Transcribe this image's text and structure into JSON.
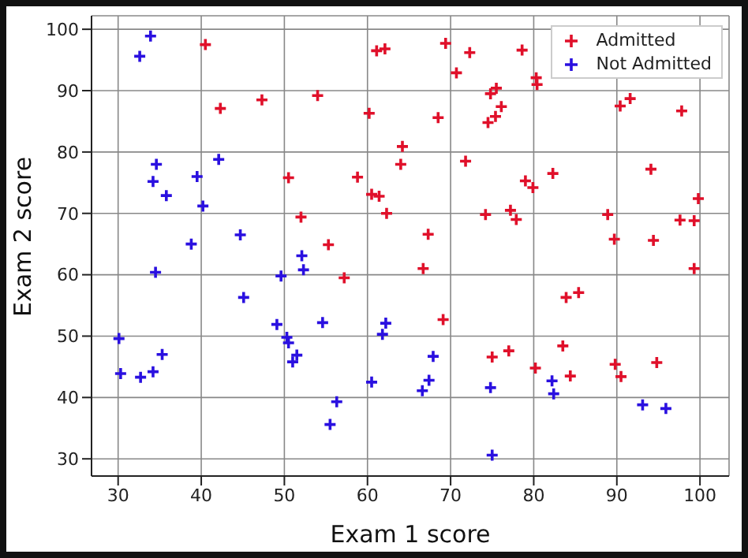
{
  "chart_data": {
    "type": "scatter",
    "xlabel": "Exam 1 score",
    "ylabel": "Exam 2 score",
    "xlim": [
      26.8,
      103.5
    ],
    "ylim": [
      27.2,
      102.2
    ],
    "xticks": [
      30,
      40,
      50,
      60,
      70,
      80,
      90,
      100
    ],
    "yticks": [
      30,
      40,
      50,
      60,
      70,
      80,
      90,
      100
    ],
    "grid": true,
    "legend": "top right",
    "marker": "cross",
    "series": [
      {
        "name": "Admitted",
        "color": "#e0102a",
        "x": [
          60.2,
          79.0,
          61.1,
          75.0,
          76.1,
          84.4,
          82.3,
          69.4,
          54.0,
          69.1,
          70.7,
          77.0,
          89.7,
          77.9,
          62.3,
          80.2,
          61.4,
          85.4,
          52.0,
          64.2,
          83.9,
          94.4,
          77.2,
          97.8,
          62.1,
          91.6,
          79.9,
          99.3,
          90.5,
          97.6,
          74.2,
          71.8,
          75.4,
          40.5,
          80.3,
          66.7,
          64.0,
          72.3,
          60.5,
          58.8,
          99.8,
          47.3,
          50.5,
          88.9,
          94.8,
          67.3,
          57.2,
          80.4,
          68.5,
          75.5,
          78.6,
          94.1,
          90.4,
          74.5,
          89.8,
          83.5,
          42.3,
          99.3,
          55.3,
          74.8
        ],
        "values": [
          86.3,
          75.3,
          96.5,
          46.6,
          87.4,
          43.5,
          76.5,
          97.7,
          89.2,
          52.7,
          92.9,
          47.6,
          65.8,
          69.0,
          70.0,
          44.8,
          72.8,
          57.1,
          69.4,
          80.9,
          56.3,
          65.6,
          70.5,
          86.7,
          96.8,
          88.7,
          74.2,
          61.0,
          43.4,
          68.9,
          69.8,
          78.5,
          85.8,
          97.5,
          92.1,
          61.0,
          78.0,
          96.2,
          73.1,
          75.9,
          72.4,
          88.5,
          75.8,
          69.8,
          45.7,
          66.6,
          59.5,
          91.0,
          85.6,
          90.4,
          96.6,
          77.2,
          87.5,
          84.8,
          45.4,
          48.4,
          87.1,
          68.8,
          64.9,
          89.5
        ]
      },
      {
        "name": "Not Admitted",
        "color": "#2a10e0",
        "x": [
          34.6,
          30.3,
          35.8,
          45.1,
          95.9,
          75.0,
          39.5,
          67.9,
          67.4,
          50.5,
          34.2,
          93.1,
          61.8,
          38.8,
          52.1,
          40.2,
          54.6,
          33.9,
          74.8,
          34.2,
          51.5,
          82.4,
          51.0,
          62.2,
          34.5,
          50.3,
          49.6,
          32.6,
          35.3,
          56.3,
          30.1,
          44.7,
          66.6,
          49.1,
          32.7,
          60.5,
          82.2,
          42.1,
          52.3,
          55.5
        ],
        "values": [
          78.0,
          43.9,
          72.9,
          56.3,
          38.2,
          30.6,
          76.0,
          46.7,
          42.8,
          48.9,
          44.2,
          38.8,
          50.3,
          65.0,
          63.1,
          71.2,
          52.2,
          98.9,
          41.6,
          75.2,
          46.9,
          40.6,
          45.8,
          52.1,
          60.4,
          49.8,
          59.8,
          95.6,
          47.0,
          39.3,
          49.6,
          66.5,
          41.1,
          51.9,
          43.3,
          42.5,
          42.7,
          78.8,
          60.8,
          35.6
        ]
      }
    ]
  }
}
